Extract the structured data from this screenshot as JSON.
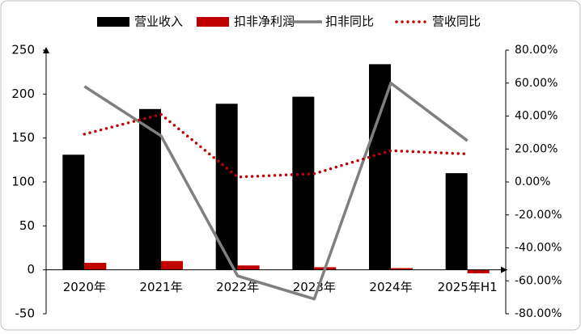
{
  "chart_data": {
    "type": "bar-line",
    "categories": [
      "2020年",
      "2021年",
      "2022年",
      "2023年",
      "2024年",
      "2025年H1"
    ],
    "series": [
      {
        "name": "营业收入",
        "color": "#000000",
        "type": "bar",
        "values": [
          131,
          183,
          189,
          197,
          234,
          110
        ]
      },
      {
        "name": "扣非净利润",
        "color": "#c00000",
        "type": "bar",
        "values": [
          8,
          10,
          5,
          3,
          2,
          -4
        ]
      },
      {
        "name": "扣非同比",
        "color": "#7f7f7f",
        "type": "line",
        "axis": "y2",
        "values": [
          58,
          28,
          -57,
          -71,
          60,
          25
        ]
      },
      {
        "name": "营收同比",
        "color": "#c00000",
        "type": "dotted-line",
        "axis": "y2",
        "values": [
          29,
          41,
          3,
          5,
          19,
          17
        ]
      }
    ],
    "ylim": [
      -50,
      250
    ],
    "yticks": [
      -50,
      0,
      50,
      100,
      150,
      200,
      250
    ],
    "y2lim": [
      -80,
      80
    ],
    "y2ticks": [
      {
        "value": -80,
        "label": "-80.00%"
      },
      {
        "value": -60,
        "label": "-60.00%"
      },
      {
        "value": -40,
        "label": "-40.00%"
      },
      {
        "value": -20,
        "label": "-20.00%"
      },
      {
        "value": 0,
        "label": "0.00%"
      },
      {
        "value": 20,
        "label": "20.00%"
      },
      {
        "value": 40,
        "label": "40.00%"
      },
      {
        "value": 60,
        "label": "60.00%"
      },
      {
        "value": 80,
        "label": "80.00%"
      }
    ],
    "legend": "top"
  }
}
